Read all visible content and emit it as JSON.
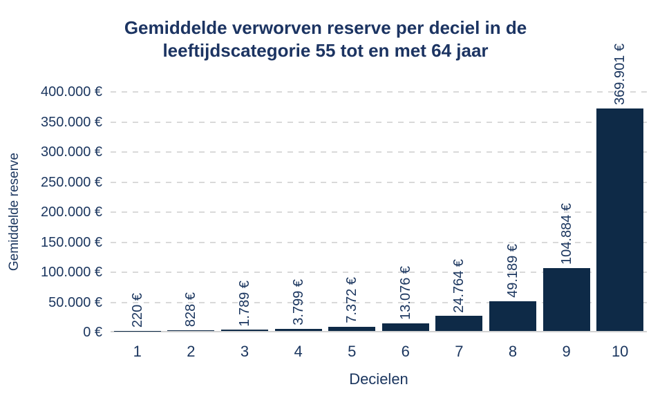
{
  "chart_data": {
    "type": "bar",
    "title_lines": [
      "Gemiddelde verworven reserve per deciel in de",
      "leeftijdscategorie 55 tot en met 64 jaar"
    ],
    "xlabel": "Decielen",
    "ylabel": "Gemiddelde reserve",
    "categories": [
      "1",
      "2",
      "3",
      "4",
      "5",
      "6",
      "7",
      "8",
      "9",
      "10"
    ],
    "values": [
      220,
      828,
      1789,
      3799,
      7372,
      13076,
      24764,
      49189,
      104884,
      369901
    ],
    "value_labels": [
      "220 €",
      "828 €",
      "1.789 €",
      "3.799 €",
      "7.372 €",
      "13.076 €",
      "24.764 €",
      "49.189 €",
      "104.884 €",
      "369.901 €"
    ],
    "y_ticks": [
      {
        "value": 400000,
        "label": "400.000 €"
      },
      {
        "value": 350000,
        "label": "350.000 €"
      },
      {
        "value": 300000,
        "label": "300.000 €"
      },
      {
        "value": 250000,
        "label": "250.000 €"
      },
      {
        "value": 200000,
        "label": "200.000 €"
      },
      {
        "value": 150000,
        "label": "150.000 €"
      },
      {
        "value": 100000,
        "label": "100.000 €"
      },
      {
        "value": 50000,
        "label": "50.000 €"
      },
      {
        "value": 0,
        "label": "0 €"
      }
    ],
    "ylim": [
      0,
      400000
    ],
    "grid": {
      "horizontal": true,
      "style": "dashed"
    },
    "legend": "none",
    "colors": {
      "bar": "#0e2a47",
      "text": "#1a355e",
      "title": "#1c3462",
      "gridline": "#d9d9d9",
      "axis_line": "#d2d2d2",
      "background": "#ffffff"
    }
  }
}
